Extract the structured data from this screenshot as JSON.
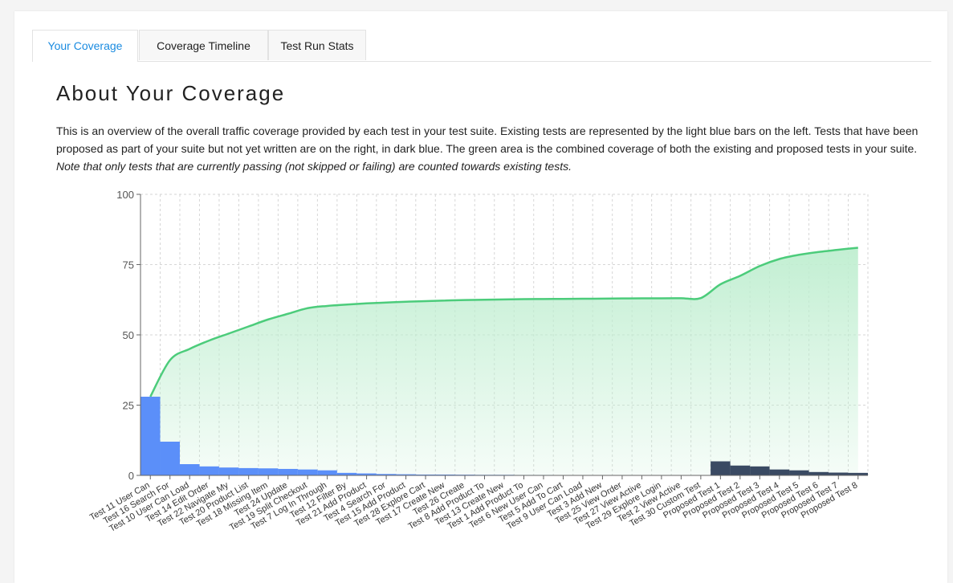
{
  "tabs": [
    {
      "label": "Your Coverage",
      "active": true
    },
    {
      "label": "Coverage Timeline",
      "active": false
    },
    {
      "label": "Test Run Stats",
      "active": false
    }
  ],
  "heading": "About Your Coverage",
  "description": "This is an overview of the overall traffic coverage provided by each test in your test suite. Existing tests are represented by the light blue bars on the left. Tests that have been proposed as part of your suite but not yet written are on the right, in dark blue. The green area is the combined coverage of both the existing and proposed tests in your suite.",
  "description_note": "Note that only tests that are currently passing (not skipped or failing) are counted towards existing tests.",
  "colors": {
    "existing_bar": "#5b8ff9",
    "proposed_bar": "#3a4a63",
    "coverage_line": "#4ccc7b",
    "coverage_fill": "#bfeed0",
    "active_tab": "#1a8be0"
  },
  "chart_data": {
    "type": "bar",
    "ylim": [
      0,
      100
    ],
    "yticks": [
      0,
      25,
      50,
      75,
      100
    ],
    "grid": true,
    "categories": [
      "Test 11 User Can",
      "Test 16 Search For",
      "Test 10 User Can Load",
      "Test 14 Edit Order",
      "Test 22 Navigate My",
      "Test 20 Product List",
      "Test 18 Missing Item",
      "Test 24 Update",
      "Test 19 Split Checkout",
      "Test 7 Log In Through",
      "Test 12 Filter By",
      "Test 21 Add Product",
      "Test 4 Search For",
      "Test 15 Add Product",
      "Test 28 Explore Cart",
      "Test 17 Create New",
      "Test 26 Create",
      "Test 8 Add Product To",
      "Test 13 Create New",
      "Test 1 Add Product To",
      "Test 6 New User Can",
      "Test 5 Add To Cart",
      "Test 9 User Can Load",
      "Test 3 Add New",
      "Test 25 View Order",
      "Test 27 View Active",
      "Test 29 Explore Login",
      "Test 2 View Active",
      "Test 30 Custom Test",
      "Proposed Test 1",
      "Proposed Test 2",
      "Proposed Test 3",
      "Proposed Test 4",
      "Proposed Test 5",
      "Proposed Test 6",
      "Proposed Test 7",
      "Proposed Test 8"
    ],
    "series": [
      {
        "group": "existing",
        "values": [
          28,
          12,
          4,
          3.2,
          2.8,
          2.6,
          2.5,
          2.3,
          2.1,
          1.8,
          0.9,
          0.7,
          0.5,
          0.4,
          0.3,
          0.3,
          0.25,
          0.2,
          0.2,
          0.15,
          0.15,
          0.1,
          0.1,
          0.1,
          0.05,
          0.05,
          0.05,
          0.05,
          0.05,
          0,
          0,
          0,
          0,
          0,
          0,
          0,
          0
        ]
      },
      {
        "group": "proposed",
        "values": [
          0,
          0,
          0,
          0,
          0,
          0,
          0,
          0,
          0,
          0,
          0,
          0,
          0,
          0,
          0,
          0,
          0,
          0,
          0,
          0,
          0,
          0,
          0,
          0,
          0,
          0,
          0,
          0,
          0,
          5,
          3.5,
          3.2,
          2.1,
          1.8,
          1.2,
          1.0,
          0.9
        ]
      },
      {
        "group": "cumulative",
        "type": "area",
        "values": [
          28,
          41,
          45,
          48,
          50.5,
          53,
          55.5,
          57.5,
          59.5,
          60.3,
          60.8,
          61.2,
          61.5,
          61.8,
          62.0,
          62.2,
          62.4,
          62.5,
          62.6,
          62.7,
          62.75,
          62.8,
          62.85,
          62.9,
          62.95,
          63.0,
          63.0,
          63.05,
          63.1,
          68,
          71,
          74.5,
          77,
          78.5,
          79.5,
          80.3,
          81
        ]
      }
    ]
  }
}
